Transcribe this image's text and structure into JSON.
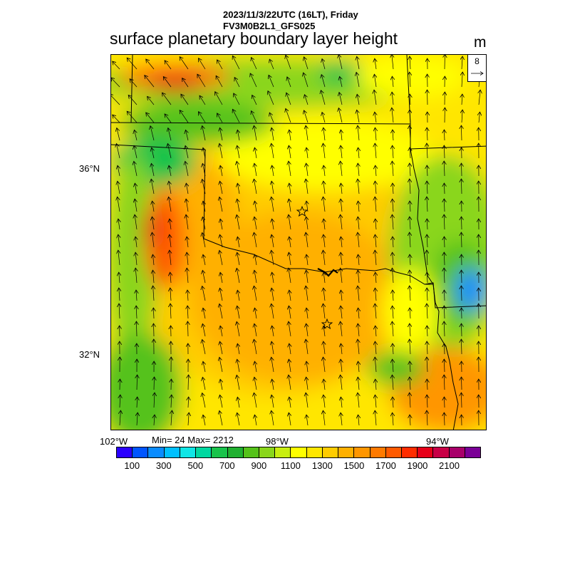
{
  "header": {
    "line1": "2023/11/3/22UTC (16LT), Friday",
    "line2": "FV3M0B2L1_GFS025",
    "title": "surface planetary boundary layer height",
    "unit": "m"
  },
  "map": {
    "lat_labels": [
      "36°N",
      "32°N"
    ],
    "lon_labels": [
      "102°W",
      "98°W",
      "94°W"
    ],
    "vector_reference": "8",
    "stats": "Min= 24 Max= 2212"
  },
  "colorbar": {
    "colors": [
      "#2a00ff",
      "#0055ff",
      "#0a8cff",
      "#00c0ff",
      "#10e6e6",
      "#00d8a0",
      "#19c34b",
      "#20b030",
      "#55c21a",
      "#8ad61a",
      "#c8ee10",
      "#ffff00",
      "#ffe600",
      "#ffcc00",
      "#ffb000",
      "#ff9600",
      "#ff7a00",
      "#ff5a00",
      "#ff2d00",
      "#e60018",
      "#c80046",
      "#a8006a",
      "#7a0096"
    ],
    "labels": [
      "100",
      "300",
      "500",
      "700",
      "900",
      "1100",
      "1300",
      "1500",
      "1700",
      "1900",
      "2100"
    ]
  }
}
